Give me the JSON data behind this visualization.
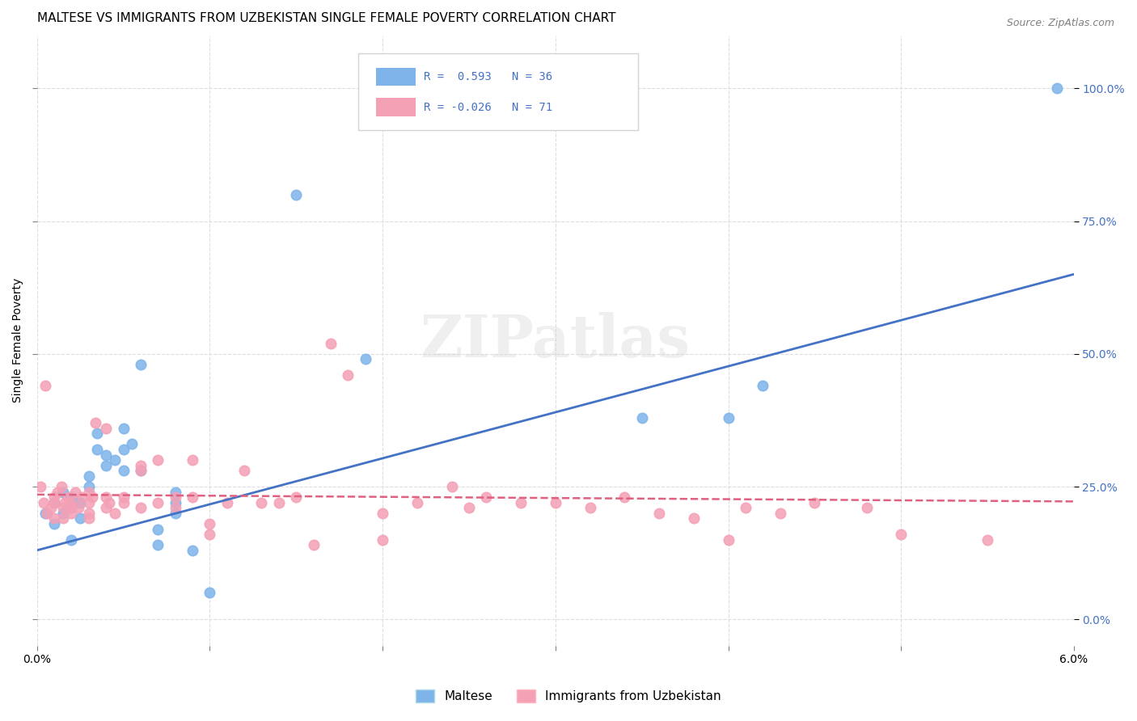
{
  "title": "MALTESE VS IMMIGRANTS FROM UZBEKISTAN SINGLE FEMALE POVERTY CORRELATION CHART",
  "source": "Source: ZipAtlas.com",
  "ylabel": "Single Female Poverty",
  "ylabel_right_ticks": [
    "0.0%",
    "25.0%",
    "50.0%",
    "75.0%",
    "100.0%"
  ],
  "ylabel_right_vals": [
    0.0,
    0.25,
    0.5,
    0.75,
    1.0
  ],
  "xlim": [
    0.0,
    0.06
  ],
  "ylim": [
    -0.05,
    1.1
  ],
  "blue_color": "#7eb4ea",
  "pink_color": "#f4a0b5",
  "blue_line_color": "#4472c4",
  "pink_line_color": "#e06080",
  "legend_R_blue": "R =  0.593",
  "legend_N_blue": "N = 36",
  "legend_R_pink": "R = -0.026",
  "legend_N_pink": "N = 71",
  "watermark": "ZIPatlas",
  "blue_scatter_x": [
    0.0005,
    0.001,
    0.001,
    0.0015,
    0.0015,
    0.002,
    0.002,
    0.002,
    0.0025,
    0.0025,
    0.003,
    0.003,
    0.0035,
    0.0035,
    0.004,
    0.004,
    0.0045,
    0.005,
    0.005,
    0.005,
    0.0055,
    0.006,
    0.006,
    0.007,
    0.007,
    0.008,
    0.008,
    0.008,
    0.009,
    0.01,
    0.015,
    0.019,
    0.035,
    0.04,
    0.042,
    0.059
  ],
  "blue_scatter_y": [
    0.2,
    0.22,
    0.18,
    0.24,
    0.2,
    0.23,
    0.21,
    0.15,
    0.22,
    0.19,
    0.25,
    0.27,
    0.35,
    0.32,
    0.29,
    0.31,
    0.3,
    0.32,
    0.28,
    0.36,
    0.33,
    0.28,
    0.48,
    0.17,
    0.14,
    0.22,
    0.24,
    0.2,
    0.13,
    0.05,
    0.8,
    0.49,
    0.38,
    0.38,
    0.44,
    1.0
  ],
  "pink_scatter_x": [
    0.0002,
    0.0004,
    0.0005,
    0.0006,
    0.0008,
    0.001,
    0.001,
    0.001,
    0.0012,
    0.0014,
    0.0015,
    0.0015,
    0.0016,
    0.0018,
    0.002,
    0.002,
    0.002,
    0.0022,
    0.0024,
    0.0026,
    0.003,
    0.003,
    0.003,
    0.003,
    0.0032,
    0.0034,
    0.004,
    0.004,
    0.004,
    0.0042,
    0.0045,
    0.005,
    0.005,
    0.006,
    0.006,
    0.006,
    0.007,
    0.007,
    0.008,
    0.008,
    0.009,
    0.009,
    0.01,
    0.01,
    0.011,
    0.012,
    0.013,
    0.014,
    0.015,
    0.016,
    0.017,
    0.018,
    0.02,
    0.02,
    0.022,
    0.024,
    0.025,
    0.026,
    0.028,
    0.03,
    0.032,
    0.034,
    0.036,
    0.038,
    0.04,
    0.041,
    0.043,
    0.045,
    0.048,
    0.05,
    0.055
  ],
  "pink_scatter_y": [
    0.25,
    0.22,
    0.44,
    0.2,
    0.21,
    0.23,
    0.22,
    0.19,
    0.24,
    0.25,
    0.21,
    0.19,
    0.22,
    0.23,
    0.22,
    0.21,
    0.2,
    0.24,
    0.21,
    0.23,
    0.22,
    0.2,
    0.24,
    0.19,
    0.23,
    0.37,
    0.36,
    0.23,
    0.21,
    0.22,
    0.2,
    0.23,
    0.22,
    0.28,
    0.29,
    0.21,
    0.3,
    0.22,
    0.23,
    0.21,
    0.3,
    0.23,
    0.18,
    0.16,
    0.22,
    0.28,
    0.22,
    0.22,
    0.23,
    0.14,
    0.52,
    0.46,
    0.2,
    0.15,
    0.22,
    0.25,
    0.21,
    0.23,
    0.22,
    0.22,
    0.21,
    0.23,
    0.2,
    0.19,
    0.15,
    0.21,
    0.2,
    0.22,
    0.21,
    0.16,
    0.15
  ],
  "blue_trend_x": [
    0.0,
    0.06
  ],
  "blue_trend_y": [
    0.13,
    0.65
  ],
  "pink_trend_x": [
    0.0,
    0.06
  ],
  "pink_trend_y": [
    0.235,
    0.222
  ],
  "grid_color": "#dddddd",
  "title_fontsize": 11,
  "tick_fontsize": 10,
  "marker_size": 80
}
